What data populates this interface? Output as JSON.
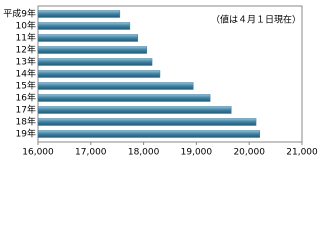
{
  "chart_data": {
    "type": "bar",
    "orientation": "horizontal",
    "annotation": "（値は４月１日現在）",
    "categories": [
      "平成9年",
      "10年",
      "11年",
      "12年",
      "13年",
      "14年",
      "15年",
      "16年",
      "17年",
      "18年",
      "19年"
    ],
    "values": [
      17550,
      17740,
      17890,
      18060,
      18160,
      18310,
      18940,
      19260,
      19660,
      20130,
      20200
    ],
    "color": "#3f7f9f",
    "xlim": [
      16000,
      21000
    ],
    "xticks": [
      {
        "value": 16000,
        "label": "16,000"
      },
      {
        "value": 17000,
        "label": "17,000"
      },
      {
        "value": 18000,
        "label": "18,000"
      },
      {
        "value": 19000,
        "label": "19,000"
      },
      {
        "value": 20000,
        "label": "20,000"
      },
      {
        "value": 21000,
        "label": "21,000"
      }
    ]
  }
}
